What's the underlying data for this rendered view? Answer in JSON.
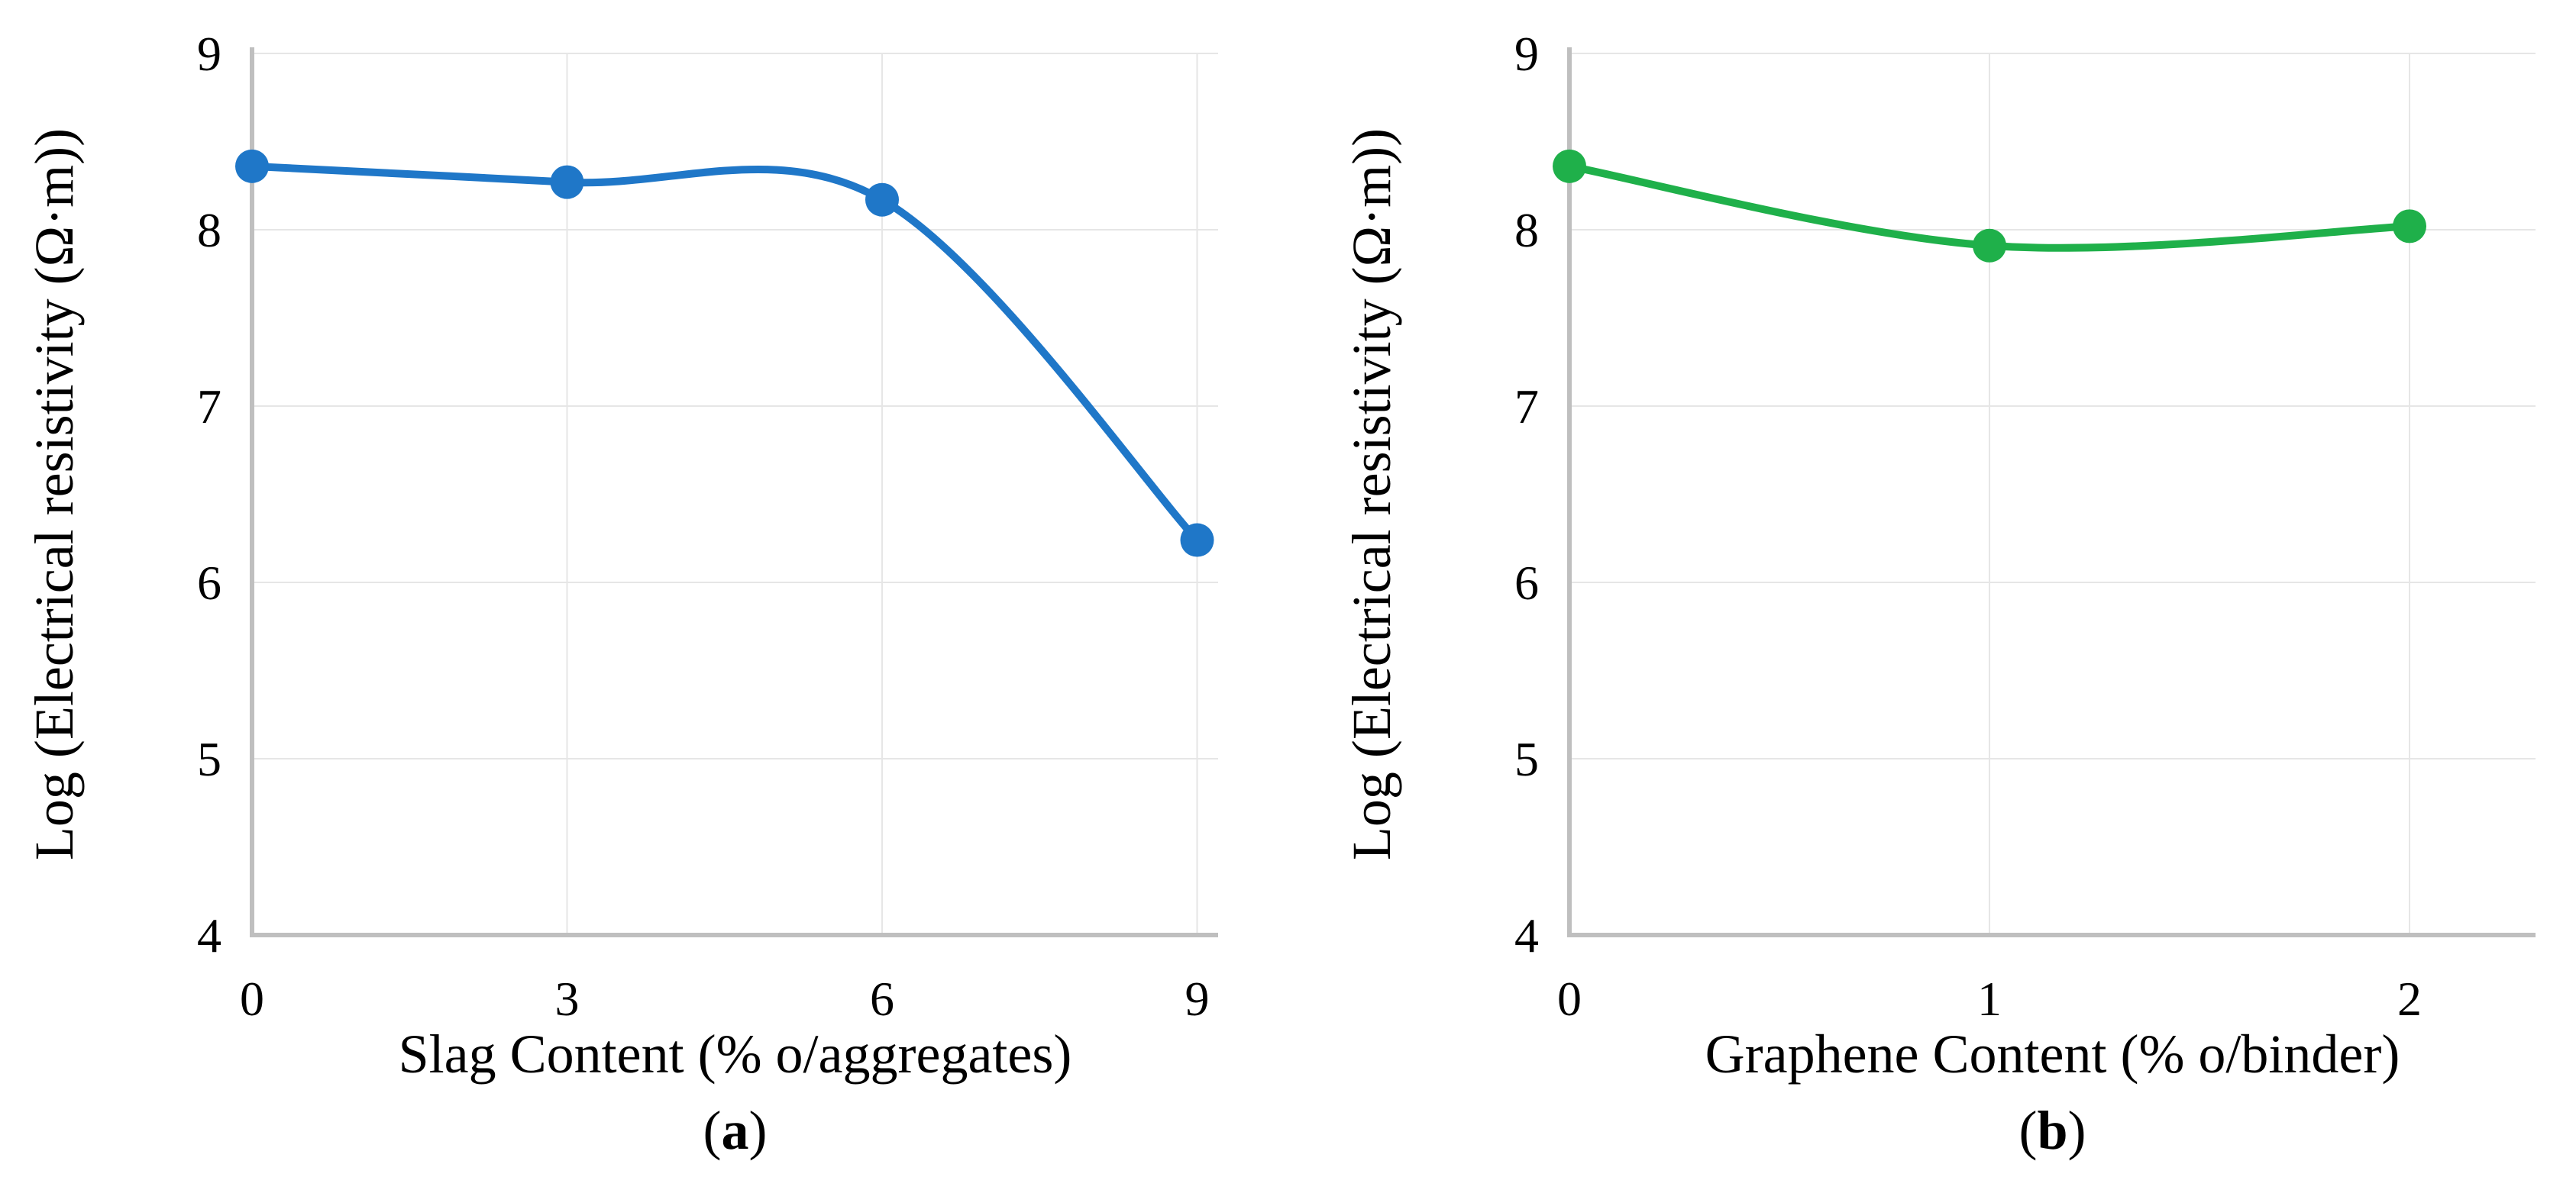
{
  "chart_data": [
    {
      "type": "line",
      "smooth": true,
      "panel_letter": "a",
      "xlabel": "Slag Content (% o/aggregates)",
      "ylabel": "Log (Electrical resistivity (Ω·m))",
      "x": [
        0,
        3,
        6,
        9
      ],
      "x_tick_labels": [
        "0",
        "3",
        "6",
        "9"
      ],
      "y_tick_labels": [
        "4",
        "5",
        "6",
        "7",
        "8",
        "9"
      ],
      "ylim": [
        4,
        9
      ],
      "xlim": [
        0,
        9.2
      ],
      "series": [
        {
          "name": "Slag",
          "color": "#1f77c8",
          "values": [
            8.36,
            8.27,
            8.17,
            6.24
          ]
        }
      ],
      "grid": true
    },
    {
      "type": "line",
      "smooth": true,
      "panel_letter": "b",
      "xlabel": "Graphene Content (% o/binder)",
      "ylabel": "Log (Electrical resistivity (Ω·m))",
      "x": [
        0,
        1,
        2
      ],
      "x_tick_labels": [
        "0",
        "1",
        "2"
      ],
      "y_tick_labels": [
        "4",
        "5",
        "6",
        "7",
        "8",
        "9"
      ],
      "ylim": [
        4,
        9
      ],
      "xlim": [
        0,
        2.3
      ],
      "series": [
        {
          "name": "Graphene",
          "color": "#1fb04a",
          "values": [
            8.36,
            7.91,
            8.02
          ]
        }
      ],
      "grid": true
    }
  ]
}
